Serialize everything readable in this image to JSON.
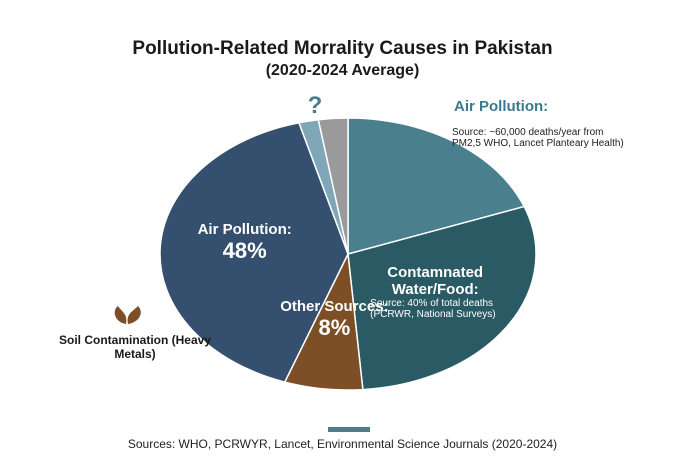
{
  "chart_data": {
    "type": "pie",
    "title": "Pollution-Related Morrality Causes in Pakistan",
    "subtitle": "(2020-2024 Average)",
    "categories": [
      "Air Pollution:",
      "Contamnated Water/Food:",
      "Other Sources:",
      "Air Pollution:",
      null,
      null
    ],
    "values": [
      23,
      35,
      8,
      48,
      2,
      3
    ],
    "value_labels": [
      null,
      null,
      "8%",
      "48%",
      null,
      null
    ],
    "colors": [
      "#4a7f8e",
      "#2a5a63",
      "#7d4f26",
      "#34506e",
      "#7fa7b8",
      "#9a9a9a"
    ],
    "notes": [
      "Source: ~60,000 deaths/year from PM2,5 WHO, Lancet Planteary Health)",
      "Source: 40% of total deaths (PCRWR, National Surveys)",
      null,
      null,
      null,
      null
    ],
    "annotations": [
      "?",
      "Soil Contamination (Heavy Metals)"
    ],
    "source": "Sources: WHO, PCRWYR, Lancet, Environmental Science Journals (2020-2024)"
  }
}
